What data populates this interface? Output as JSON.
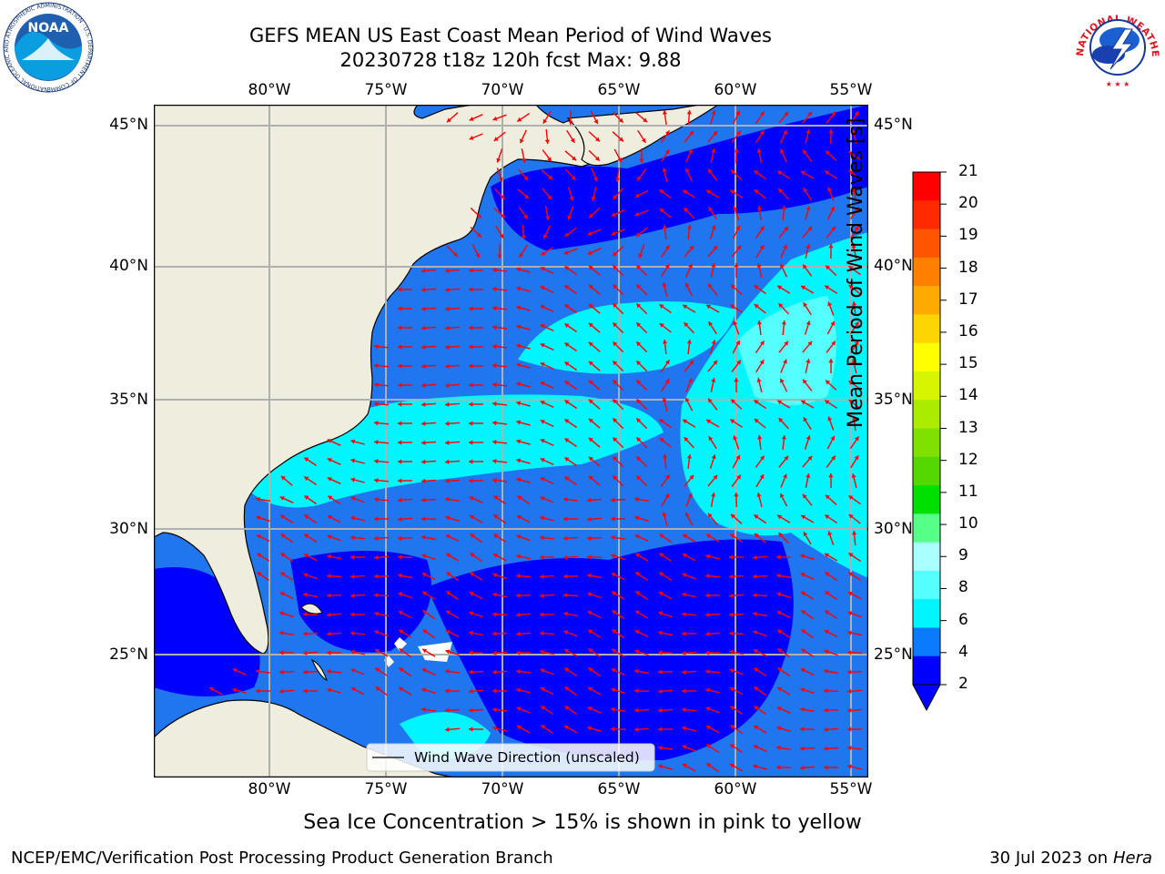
{
  "header": {
    "title_line1": "GEFS MEAN US East Coast Mean Period of Wind Waves",
    "title_line2": "20230728 t18z 120h fcst   Max: 9.88"
  },
  "map": {
    "lon_labels": [
      "80°W",
      "75°W",
      "70°W",
      "65°W",
      "60°W",
      "55°W"
    ],
    "lat_labels": [
      "45°N",
      "40°N",
      "35°N",
      "30°N",
      "25°N"
    ],
    "legend": "Wind Wave Direction (unscaled)",
    "colors": {
      "land": "#efedde",
      "grid": "#b0b0b0",
      "arrow": "#ff0000"
    }
  },
  "colorbar": {
    "label": "Mean Period of Wind Waves [s]",
    "ticks": [
      "21",
      "20",
      "19",
      "18",
      "17",
      "16",
      "15",
      "14",
      "13",
      "12",
      "11",
      "10",
      "9",
      "8",
      "6",
      "4",
      "2"
    ],
    "colors": [
      "#ff0000",
      "#ff2a00",
      "#ff5500",
      "#ff8000",
      "#ffaa00",
      "#ffd400",
      "#ffff00",
      "#d5f500",
      "#aaeb00",
      "#80e100",
      "#55d700",
      "#00e000",
      "#55ff88",
      "#aaffff",
      "#55ffff",
      "#00f5ff",
      "#0a7bff",
      "#0000ff"
    ]
  },
  "caption": "Sea Ice Concentration > 15% is shown in pink to yellow",
  "footer": {
    "left": "NCEP/EMC/Verification Post Processing Product Generation Branch",
    "right_date": "30 Jul 2023 on ",
    "right_machine": "Hera"
  },
  "logos": {
    "noaa": "NOAA",
    "noaa_ring": "NATIONAL OCEANIC AND ATMOSPHERIC ADMINISTRATION · U.S. DEPARTMENT OF COMMERCE",
    "nws_ring": "NATIONAL WEATHER SERVICE"
  }
}
